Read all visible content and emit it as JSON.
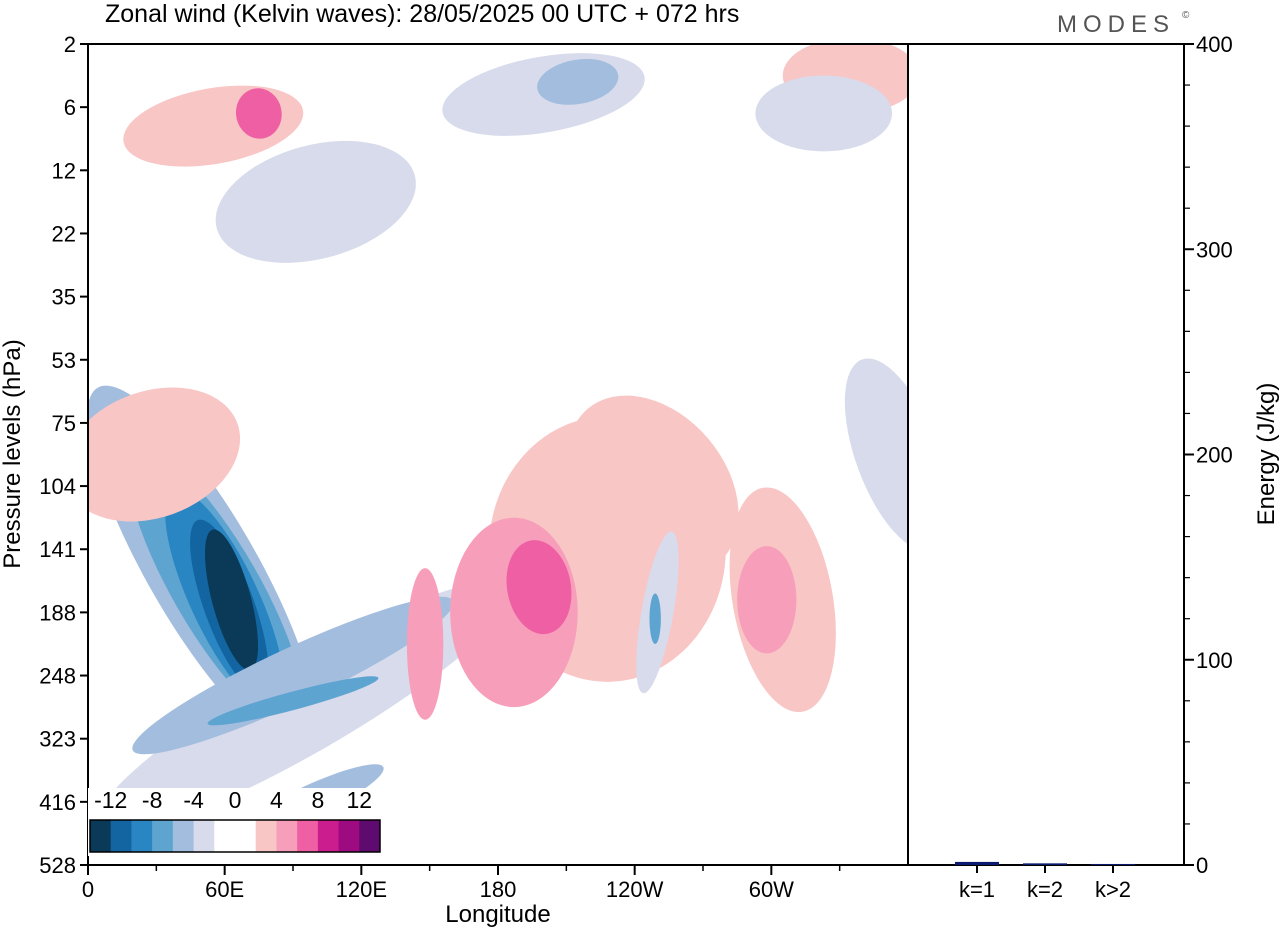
{
  "chart_data": [
    {
      "type": "heatmap",
      "title": "Zonal wind (Kelvin waves):  28/05/2025  00 UTC  + 072 hrs",
      "brand": "MODES",
      "brand_mark": "©",
      "xlabel": "Longitude",
      "ylabel": "Pressure levels (hPa)",
      "x_ticks": [
        {
          "lon": 0,
          "label": "0"
        },
        {
          "lon": 60,
          "label": "60E"
        },
        {
          "lon": 120,
          "label": "120E"
        },
        {
          "lon": 180,
          "label": "180"
        },
        {
          "lon": 240,
          "label": "120W"
        },
        {
          "lon": 300,
          "label": "60W"
        }
      ],
      "xlim": [
        0,
        360
      ],
      "y_levels": [
        "2",
        "6",
        "12",
        "22",
        "35",
        "53",
        "75",
        "104",
        "141",
        "188",
        "248",
        "323",
        "416",
        "528"
      ],
      "colorbar": {
        "labels": [
          "-12",
          "-8",
          "-4",
          "0",
          "4",
          "8",
          "12"
        ],
        "colors": [
          "#0a3a57",
          "#1265a0",
          "#2a86c2",
          "#5ea4d1",
          "#a2bddd",
          "#d7dbeb",
          "#ffffff",
          "#ffffff",
          "#f9c6c6",
          "#f79fba",
          "#ee5fa3",
          "#cc1d8f",
          "#9e0a80",
          "#5e0a6e"
        ]
      },
      "blobs": [
        {
          "lon": 50,
          "lev": 8.3,
          "rx": 24,
          "ry": 3.3,
          "rot": -30,
          "color": "#a2bddd"
        },
        {
          "lon": 56,
          "lev": 8.6,
          "rx": 19,
          "ry": 2.5,
          "rot": -30,
          "color": "#5ea4d1"
        },
        {
          "lon": 60,
          "lev": 8.8,
          "rx": 15,
          "ry": 1.9,
          "rot": -25,
          "color": "#2a86c2"
        },
        {
          "lon": 62,
          "lev": 8.9,
          "rx": 11,
          "ry": 1.45,
          "rot": -20,
          "color": "#1265a0"
        },
        {
          "lon": 63,
          "lev": 8.8,
          "rx": 8.5,
          "ry": 1.15,
          "rot": -15,
          "color": "#0a3a57"
        },
        {
          "lon": 95,
          "lev": 10.5,
          "rx": 20,
          "ry": 3.8,
          "rot": 60,
          "color": "#d7dbeb"
        },
        {
          "lon": 90,
          "lev": 10.0,
          "rx": 12,
          "ry": 2.8,
          "rot": 65,
          "color": "#a2bddd"
        },
        {
          "lon": 90,
          "lev": 10.4,
          "rx": 4,
          "ry": 1.4,
          "rot": 75,
          "color": "#5ea4d1"
        },
        {
          "lon": 97,
          "lev": 12.0,
          "rx": 7,
          "ry": 1.3,
          "rot": 65,
          "color": "#a2bddd"
        },
        {
          "lon": 228,
          "lev": 8.0,
          "rx": 52,
          "ry": 2.1,
          "rot": 0,
          "color": "#f9c6c6"
        },
        {
          "lon": 248,
          "lev": 7.0,
          "rx": 32,
          "ry": 1.6,
          "rot": -40,
          "color": "#f9c6c6"
        },
        {
          "lon": 148,
          "lev": 9.5,
          "rx": 8,
          "ry": 1.2,
          "rot": 0,
          "color": "#f79fba"
        },
        {
          "lon": 187,
          "lev": 9.0,
          "rx": 28,
          "ry": 1.5,
          "rot": 0,
          "color": "#f79fba"
        },
        {
          "lon": 198,
          "lev": 8.6,
          "rx": 14,
          "ry": 0.75,
          "rot": -10,
          "color": "#ee5fa3"
        },
        {
          "lon": 250,
          "lev": 9.0,
          "rx": 7,
          "ry": 1.3,
          "rot": 10,
          "color": "#d7dbeb"
        },
        {
          "lon": 249,
          "lev": 9.1,
          "rx": 2.5,
          "ry": 0.4,
          "rot": 0,
          "color": "#5ea4d1"
        },
        {
          "lon": 305,
          "lev": 8.8,
          "rx": 22,
          "ry": 1.8,
          "rot": -10,
          "color": "#f9c6c6"
        },
        {
          "lon": 298,
          "lev": 8.8,
          "rx": 13,
          "ry": 0.85,
          "rot": 0,
          "color": "#f79fba"
        },
        {
          "lon": 55,
          "lev": 1.3,
          "rx": 40,
          "ry": 0.6,
          "rot": -10,
          "color": "#f9c6c6"
        },
        {
          "lon": 75,
          "lev": 1.1,
          "rx": 10,
          "ry": 0.4,
          "rot": -10,
          "color": "#ee5fa3"
        },
        {
          "lon": 100,
          "lev": 2.5,
          "rx": 45,
          "ry": 0.9,
          "rot": -15,
          "color": "#d7dbeb"
        },
        {
          "lon": 28,
          "lev": 6.5,
          "rx": 40,
          "ry": 1.0,
          "rot": -20,
          "color": "#f9c6c6"
        },
        {
          "lon": 200,
          "lev": 0.8,
          "rx": 45,
          "ry": 0.6,
          "rot": -10,
          "color": "#d7dbeb"
        },
        {
          "lon": 215,
          "lev": 0.6,
          "rx": 18,
          "ry": 0.35,
          "rot": -10,
          "color": "#a2bddd"
        },
        {
          "lon": 335,
          "lev": 0.5,
          "rx": 30,
          "ry": 0.6,
          "rot": 0,
          "color": "#f9c6c6"
        },
        {
          "lon": 323,
          "lev": 1.1,
          "rx": 30,
          "ry": 0.6,
          "rot": 0,
          "color": "#d7dbeb"
        },
        {
          "lon": 355,
          "lev": 6.5,
          "rx": 18,
          "ry": 1.6,
          "rot": -20,
          "color": "#d7dbeb"
        }
      ],
      "energy_bars": [
        {
          "label": "k=1",
          "value": 1.5
        },
        {
          "label": "k=2",
          "value": 0.8
        },
        {
          "label": "k>2",
          "value": 0.5
        }
      ],
      "energy_ylabel": "Energy (J/kg)",
      "energy_ylim": [
        0,
        400
      ],
      "energy_ticks": [
        "0",
        "100",
        "200",
        "300",
        "400"
      ],
      "energy_color": "#0a1a6e"
    }
  ]
}
